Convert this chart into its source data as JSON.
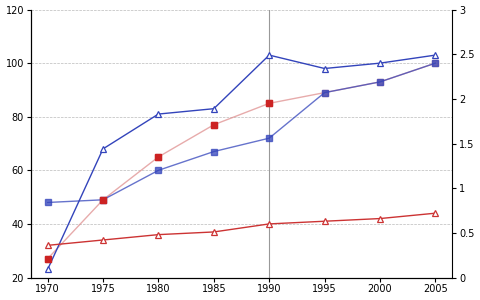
{
  "years": [
    1970,
    1975,
    1980,
    1985,
    1990,
    1995,
    2000,
    2005
  ],
  "blue_triangle": [
    23,
    68,
    81,
    83,
    103,
    98,
    100,
    103
  ],
  "blue_square": [
    48,
    49,
    60,
    67,
    72,
    89,
    93,
    100
  ],
  "pink_square": [
    27,
    49,
    65,
    77,
    85,
    89,
    93,
    100
  ],
  "red_triangle": [
    32,
    34,
    36,
    37,
    40,
    41,
    42,
    44
  ],
  "blue_triangle_color": "#3344bb",
  "blue_square_color": "#3344bb",
  "pink_square_color": "#dd8888",
  "red_square_color": "#cc2222",
  "red_triangle_color": "#cc3333",
  "ylim_left": [
    20,
    120
  ],
  "ylim_right": [
    0,
    3
  ],
  "yticks_left": [
    20,
    40,
    60,
    80,
    100,
    120
  ],
  "yticks_right": [
    0,
    0.5,
    1.0,
    1.5,
    2.0,
    2.5,
    3.0
  ],
  "xticks": [
    1970,
    1975,
    1980,
    1985,
    1990,
    1995,
    2000,
    2005
  ],
  "vline_x": 1990,
  "background_color": "#ffffff",
  "figsize": [
    4.8,
    3.0
  ],
  "dpi": 100
}
